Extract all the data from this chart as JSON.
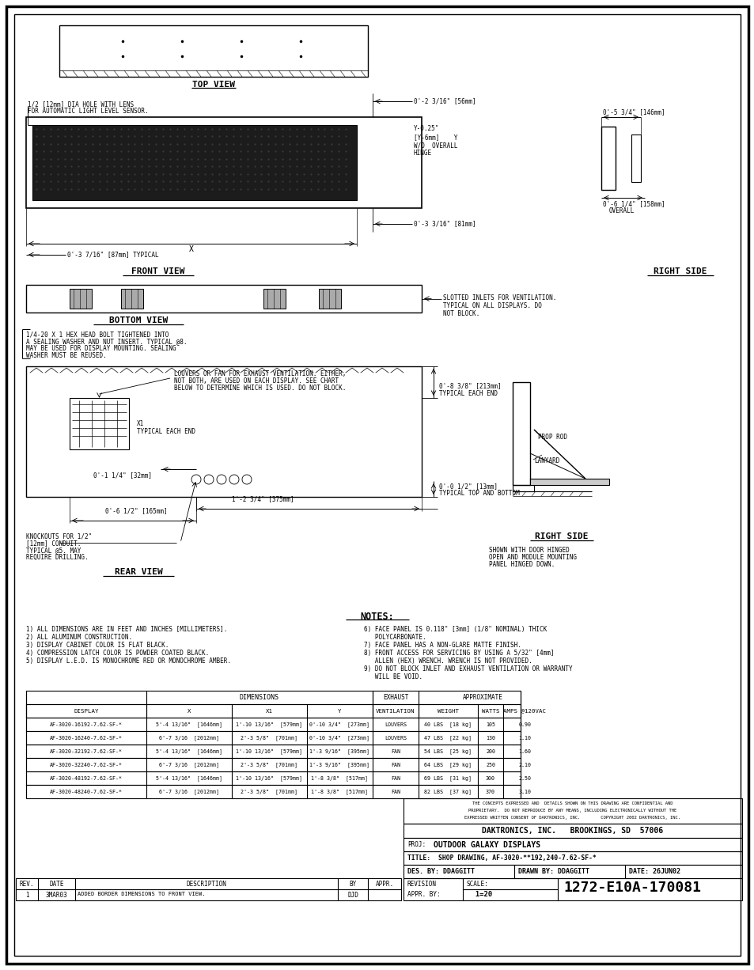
{
  "bg_color": "#ffffff",
  "notes_left": [
    "1) ALL DIMENSIONS ARE IN FEET AND INCHES [MILLIMETERS].",
    "2) ALL ALUMINUM CONSTRUCTION.",
    "3) DISPLAY CABINET COLOR IS FLAT BLACK.",
    "4) COMPRESSION LATCH COLOR IS POWDER COATED BLACK.",
    "5) DISPLAY L.E.D. IS MONOCHROME RED OR MONOCHROME AMBER."
  ],
  "notes_right": [
    "6) FACE PANEL IS 0.118\" [3mm] (1/8\" NOMINAL) THICK",
    "   POLYCARBONATE.",
    "7) FACE PANEL HAS A NON-GLARE MATTE FINISH.",
    "8) FRONT ACCESS FOR SERVICING BY USING A 5/32\" [4mm]",
    "   ALLEN (HEX) WRENCH. WRENCH IS NOT PROVIDED.",
    "9) DO NOT BLOCK INLET AND EXHAUST VENTILATION OR WARRANTY",
    "   WILL BE VOID."
  ],
  "table_data": [
    [
      "AF-3020-16192-7.62-SF-*",
      "5'-4 13/16\"  [1646mm]",
      "1'-10 13/16\"  [579mm]",
      "0'-10 3/4\"  [273mm]",
      "LOUVERS",
      "40 LBS  [18 kg]",
      "105",
      "0.90"
    ],
    [
      "AF-3020-16240-7.62-SF-*",
      "6'-7 3/16  [2012mm]",
      "2'-3 5/8\"  [701mm]",
      "0'-10 3/4\"  [273mm]",
      "LOUVERS",
      "47 LBS  [22 kg]",
      "130",
      "1.10"
    ],
    [
      "AF-3020-32192-7.62-SF-*",
      "5'-4 13/16\"  [1646mm]",
      "1'-10 13/16\"  [579mm]",
      "1'-3 9/16\"  [395mm]",
      "FAN",
      "54 LBS  [25 kg]",
      "200",
      "1.60"
    ],
    [
      "AF-3020-32240-7.62-SF-*",
      "6'-7 3/16  [2012mm]",
      "2'-3 5/8\"  [701mm]",
      "1'-3 9/16\"  [395mm]",
      "FAN",
      "64 LBS  [29 kg]",
      "250",
      "2.10"
    ],
    [
      "AF-3020-48192-7.62-SF-*",
      "5'-4 13/16\"  [1646mm]",
      "1'-10 13/16\"  [579mm]",
      "1'-8 3/8\"  [517mm]",
      "FAN",
      "69 LBS  [31 kg]",
      "300",
      "2.50"
    ],
    [
      "AF-3020-48240-7.62-SF-*",
      "6'-7 3/16  [2012mm]",
      "2'-3 5/8\"  [701mm]",
      "1'-8 3/8\"  [517mm]",
      "FAN",
      "82 LBS  [37 kg]",
      "370",
      "3.10"
    ]
  ],
  "title_block": {
    "company": "DAKTRONICS, INC.   BROOKINGS, SD  57006",
    "proj": "OUTDOOR GALAXY DISPLAYS",
    "title_line": "SHOP DRAWING, AF-3020-**192,240-7.62-SF-*",
    "des_by": "DDAGGITT",
    "drawn_by": "DDAGGITT",
    "date": "26JUN02",
    "scale": "1=20",
    "drawing_num": "1272-E10A-170081",
    "revision": "1",
    "rev_date": "3MAR03",
    "rev_desc": "ADDED BORDER DIMENSIONS TO FRONT VIEW.",
    "rev_by": "DJD"
  },
  "confidential_text": [
    "THE CONCEPTS EXPRESSED AND  DETAILS SHOWN ON THIS DRAWING ARE CONFIDENTIAL AND",
    "PROPRIETARY.  DO NOT REPRODUCE BY ANY MEANS, INCLUDING ELECTRONICALLY WITHOUT THE",
    "EXPRESSED WRITTEN CONSENT OF DAKTRONICS, INC.        COPYRIGHT 2002 DAKTRONICS, INC."
  ]
}
